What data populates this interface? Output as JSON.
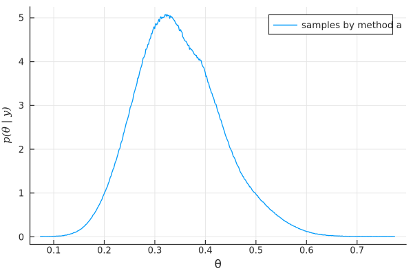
{
  "colors": {
    "background": "#FFFFFF",
    "curve": "#009AFA",
    "grid": "#E4E4E4",
    "axis": "#2E2E2E",
    "text": "#262626",
    "legend_border": "#2E2E2E",
    "legend_background": "#FFFFFF"
  },
  "chart_data": {
    "type": "line",
    "title": "",
    "xlabel": "θ",
    "ylabel": "p(θ | y)",
    "grid": true,
    "legend_position": "top-right",
    "xlim": [
      0.053,
      0.797
    ],
    "ylim": [
      -0.173,
      5.25
    ],
    "xticks": [
      0.1,
      0.2,
      0.3,
      0.4,
      0.5,
      0.6,
      0.7
    ],
    "xtick_labels": [
      "0.1",
      "0.2",
      "0.3",
      "0.4",
      "0.5",
      "0.6",
      "0.7"
    ],
    "yticks": [
      0,
      1,
      2,
      3,
      4,
      5
    ],
    "ytick_labels": [
      "0",
      "1",
      "2",
      "3",
      "4",
      "5"
    ],
    "series": [
      {
        "name": "samples by method a",
        "color": "#009AFA",
        "peak": {
          "x": 0.322,
          "y": 5.06
        },
        "points": [
          [
            0.073,
            0.004
          ],
          [
            0.085,
            0.006
          ],
          [
            0.095,
            0.009
          ],
          [
            0.105,
            0.014
          ],
          [
            0.115,
            0.022
          ],
          [
            0.125,
            0.04
          ],
          [
            0.135,
            0.07
          ],
          [
            0.145,
            0.115
          ],
          [
            0.155,
            0.185
          ],
          [
            0.165,
            0.29
          ],
          [
            0.175,
            0.44
          ],
          [
            0.185,
            0.62
          ],
          [
            0.195,
            0.85
          ],
          [
            0.205,
            1.12
          ],
          [
            0.215,
            1.45
          ],
          [
            0.225,
            1.8
          ],
          [
            0.235,
            2.2
          ],
          [
            0.245,
            2.65
          ],
          [
            0.255,
            3.1
          ],
          [
            0.265,
            3.55
          ],
          [
            0.275,
            3.98
          ],
          [
            0.285,
            4.35
          ],
          [
            0.295,
            4.68
          ],
          [
            0.305,
            4.9
          ],
          [
            0.315,
            5.02
          ],
          [
            0.322,
            5.06
          ],
          [
            0.33,
            5.03
          ],
          [
            0.34,
            4.9
          ],
          [
            0.35,
            4.72
          ],
          [
            0.36,
            4.5
          ],
          [
            0.37,
            4.28
          ],
          [
            0.38,
            4.15
          ],
          [
            0.392,
            4.0
          ],
          [
            0.4,
            3.72
          ],
          [
            0.41,
            3.38
          ],
          [
            0.42,
            3.04
          ],
          [
            0.43,
            2.68
          ],
          [
            0.44,
            2.33
          ],
          [
            0.45,
            2.0
          ],
          [
            0.46,
            1.72
          ],
          [
            0.47,
            1.47
          ],
          [
            0.48,
            1.27
          ],
          [
            0.49,
            1.11
          ],
          [
            0.5,
            0.97
          ],
          [
            0.51,
            0.84
          ],
          [
            0.52,
            0.72
          ],
          [
            0.53,
            0.61
          ],
          [
            0.54,
            0.51
          ],
          [
            0.55,
            0.42
          ],
          [
            0.56,
            0.34
          ],
          [
            0.57,
            0.27
          ],
          [
            0.58,
            0.215
          ],
          [
            0.59,
            0.165
          ],
          [
            0.6,
            0.125
          ],
          [
            0.61,
            0.09
          ],
          [
            0.62,
            0.065
          ],
          [
            0.63,
            0.048
          ],
          [
            0.645,
            0.03
          ],
          [
            0.66,
            0.02
          ],
          [
            0.68,
            0.012
          ],
          [
            0.7,
            0.008
          ],
          [
            0.73,
            0.005
          ],
          [
            0.775,
            0.004
          ]
        ]
      }
    ]
  }
}
